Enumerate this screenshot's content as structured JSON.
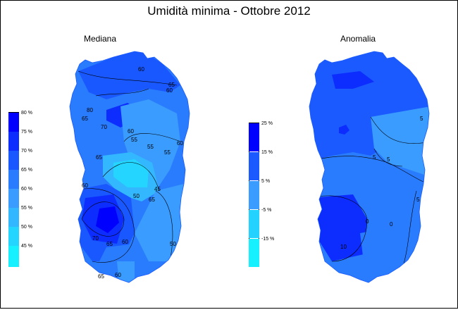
{
  "title": "Umidità minima - Ottobre 2012",
  "maps": [
    {
      "name": "Mediana",
      "legend": {
        "labels": [
          "80 %",
          "75 %",
          "70 %",
          "65 %",
          "60 %",
          "55 %",
          "50 %",
          "45 %"
        ],
        "colors": [
          "#0000ff",
          "#0d2dff",
          "#1a58ff",
          "#2a7cff",
          "#3a9cff",
          "#33b8ff",
          "#24d6ff",
          "#16f0ff"
        ]
      },
      "contour_labels": [
        "60",
        "65",
        "80",
        "65",
        "70",
        "60",
        "55",
        "55",
        "60",
        "55",
        "65",
        "60",
        "45",
        "50",
        "70",
        "65",
        "60",
        "50",
        "65",
        "60",
        "60",
        "65"
      ]
    },
    {
      "name": "Anomalia",
      "legend": {
        "labels": [
          "25 %",
          "15 %",
          "5 %",
          "-5 %",
          "-15 %"
        ],
        "colors": [
          "#0000ff",
          "#1a5aff",
          "#3a9cff",
          "#24d2ff",
          "#16f0ff"
        ]
      },
      "contour_labels": [
        "5",
        "5",
        "5",
        "5",
        "0",
        "0",
        "10"
      ]
    }
  ]
}
